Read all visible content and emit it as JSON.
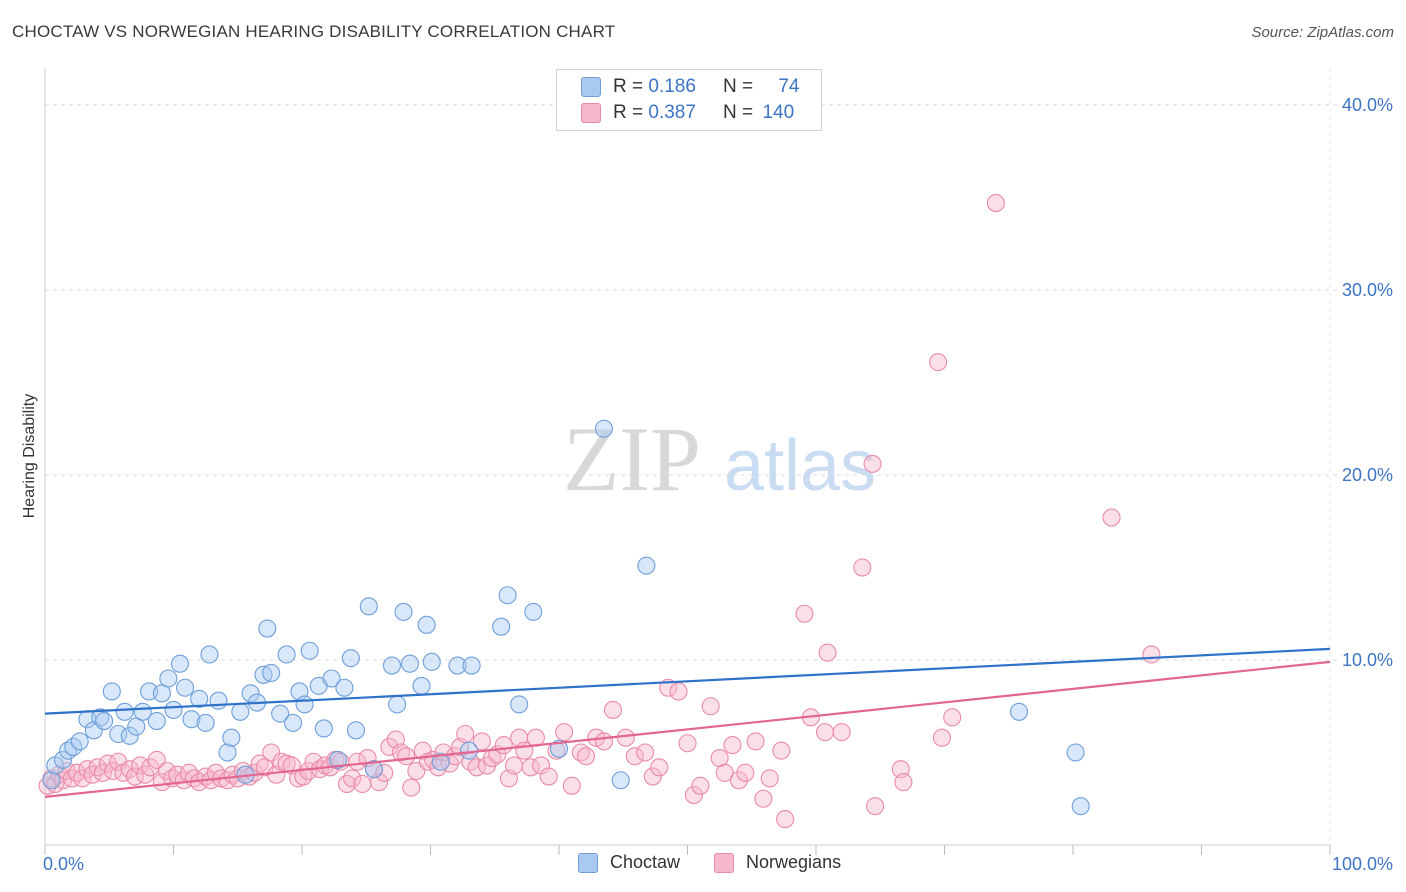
{
  "header": {
    "title": "CHOCTAW VS NORWEGIAN HEARING DISABILITY CORRELATION CHART",
    "source": "Source: ZipAtlas.com"
  },
  "legend": {
    "choctaw": {
      "r_label": "R =",
      "r_value": "0.186",
      "n_label": "N =",
      "n_value": "74"
    },
    "norwegians": {
      "r_label": "R =",
      "r_value": "0.387",
      "n_label": "N =",
      "n_value": "140"
    }
  },
  "watermark": {
    "zip": "ZIP",
    "atlas": "atlas"
  },
  "colors": {
    "choctaw_fill": "#a9c9f1",
    "choctaw_stroke": "#6e9fd8",
    "choctaw_line": "#2f72c9",
    "norwegian_fill": "#f6b8cb",
    "norwegian_stroke": "#e98aa8",
    "norwegian_line": "#e2668f",
    "tick_text": "#3d74c4"
  },
  "chart_data": {
    "type": "scatter",
    "title": "CHOCTAW VS NORWEGIAN HEARING DISABILITY CORRELATION CHART",
    "xlabel": "",
    "ylabel": "Hearing Disability",
    "xlim": [
      0,
      100
    ],
    "ylim": [
      0,
      42
    ],
    "x_tick_labels": [
      "0.0%",
      "100.0%"
    ],
    "y_ticks": [
      10,
      20,
      30,
      40
    ],
    "y_tick_labels": [
      "10.0%",
      "20.0%",
      "30.0%",
      "40.0%"
    ],
    "grid": true,
    "legend_position": "top-center",
    "series": [
      {
        "name": "Choctaw",
        "trend": {
          "x": [
            0,
            100
          ],
          "y": [
            7.1,
            10.6
          ]
        },
        "points": [
          [
            0.5,
            3.5
          ],
          [
            0.8,
            4.3
          ],
          [
            1.4,
            4.6
          ],
          [
            1.8,
            5.1
          ],
          [
            2.2,
            5.3
          ],
          [
            2.7,
            5.6
          ],
          [
            3.3,
            6.8
          ],
          [
            3.8,
            6.2
          ],
          [
            4.3,
            6.9
          ],
          [
            4.6,
            6.7
          ],
          [
            5.2,
            8.3
          ],
          [
            5.7,
            6.0
          ],
          [
            6.2,
            7.2
          ],
          [
            6.6,
            5.9
          ],
          [
            7.1,
            6.4
          ],
          [
            7.6,
            7.2
          ],
          [
            8.1,
            8.3
          ],
          [
            8.7,
            6.7
          ],
          [
            9.1,
            8.2
          ],
          [
            9.6,
            9.0
          ],
          [
            10.0,
            7.3
          ],
          [
            10.5,
            9.8
          ],
          [
            10.9,
            8.5
          ],
          [
            11.4,
            6.8
          ],
          [
            12.0,
            7.9
          ],
          [
            12.5,
            6.6
          ],
          [
            12.8,
            10.3
          ],
          [
            13.5,
            7.8
          ],
          [
            14.2,
            5.0
          ],
          [
            14.5,
            5.8
          ],
          [
            15.2,
            7.2
          ],
          [
            15.6,
            3.8
          ],
          [
            16.0,
            8.2
          ],
          [
            16.5,
            7.7
          ],
          [
            17.0,
            9.2
          ],
          [
            17.3,
            11.7
          ],
          [
            17.6,
            9.3
          ],
          [
            18.3,
            7.1
          ],
          [
            18.8,
            10.3
          ],
          [
            19.3,
            6.6
          ],
          [
            19.8,
            8.3
          ],
          [
            20.2,
            7.6
          ],
          [
            20.6,
            10.5
          ],
          [
            21.3,
            8.6
          ],
          [
            21.7,
            6.3
          ],
          [
            22.3,
            9.0
          ],
          [
            22.8,
            4.6
          ],
          [
            23.3,
            8.5
          ],
          [
            23.8,
            10.1
          ],
          [
            24.2,
            6.2
          ],
          [
            25.2,
            12.9
          ],
          [
            25.6,
            4.1
          ],
          [
            27.0,
            9.7
          ],
          [
            27.4,
            7.6
          ],
          [
            27.9,
            12.6
          ],
          [
            28.4,
            9.8
          ],
          [
            29.3,
            8.6
          ],
          [
            29.7,
            11.9
          ],
          [
            30.1,
            9.9
          ],
          [
            30.8,
            4.5
          ],
          [
            32.1,
            9.7
          ],
          [
            33.0,
            5.1
          ],
          [
            33.2,
            9.7
          ],
          [
            35.5,
            11.8
          ],
          [
            36.0,
            13.5
          ],
          [
            36.9,
            7.6
          ],
          [
            38.0,
            12.6
          ],
          [
            40.0,
            5.2
          ],
          [
            43.5,
            22.5
          ],
          [
            44.8,
            3.5
          ],
          [
            46.8,
            15.1
          ],
          [
            75.8,
            7.2
          ],
          [
            80.2,
            5.0
          ],
          [
            80.6,
            2.1
          ]
        ]
      },
      {
        "name": "Norwegians",
        "trend": {
          "x": [
            0,
            100
          ],
          "y": [
            2.6,
            9.9
          ]
        },
        "points": [
          [
            0.2,
            3.2
          ],
          [
            0.5,
            3.6
          ],
          [
            0.8,
            3.3
          ],
          [
            1.1,
            3.8
          ],
          [
            1.4,
            3.5
          ],
          [
            1.7,
            4.0
          ],
          [
            2.1,
            3.6
          ],
          [
            2.5,
            3.9
          ],
          [
            2.9,
            3.6
          ],
          [
            3.3,
            4.1
          ],
          [
            3.7,
            3.8
          ],
          [
            4.1,
            4.2
          ],
          [
            4.5,
            3.9
          ],
          [
            4.9,
            4.4
          ],
          [
            5.3,
            4.0
          ],
          [
            5.7,
            4.5
          ],
          [
            6.1,
            3.9
          ],
          [
            6.6,
            4.1
          ],
          [
            7.0,
            3.7
          ],
          [
            7.4,
            4.3
          ],
          [
            7.8,
            3.8
          ],
          [
            8.2,
            4.2
          ],
          [
            8.7,
            4.6
          ],
          [
            9.1,
            3.4
          ],
          [
            9.5,
            4.0
          ],
          [
            9.9,
            3.6
          ],
          [
            10.3,
            3.8
          ],
          [
            10.8,
            3.5
          ],
          [
            11.2,
            3.9
          ],
          [
            11.6,
            3.6
          ],
          [
            12.0,
            3.4
          ],
          [
            12.5,
            3.7
          ],
          [
            12.9,
            3.5
          ],
          [
            13.3,
            3.9
          ],
          [
            13.7,
            3.6
          ],
          [
            14.2,
            3.5
          ],
          [
            14.6,
            3.8
          ],
          [
            15.0,
            3.6
          ],
          [
            15.4,
            4.0
          ],
          [
            15.9,
            3.7
          ],
          [
            16.3,
            3.9
          ],
          [
            16.7,
            4.4
          ],
          [
            17.1,
            4.2
          ],
          [
            17.6,
            5.0
          ],
          [
            18.0,
            3.8
          ],
          [
            18.4,
            4.5
          ],
          [
            18.8,
            4.4
          ],
          [
            19.2,
            4.3
          ],
          [
            19.7,
            3.6
          ],
          [
            20.1,
            3.7
          ],
          [
            20.5,
            4.0
          ],
          [
            20.9,
            4.5
          ],
          [
            21.4,
            4.1
          ],
          [
            21.8,
            4.3
          ],
          [
            22.2,
            4.2
          ],
          [
            22.6,
            4.6
          ],
          [
            23.0,
            4.5
          ],
          [
            23.5,
            3.3
          ],
          [
            23.9,
            3.6
          ],
          [
            24.3,
            4.5
          ],
          [
            24.7,
            3.3
          ],
          [
            25.1,
            4.7
          ],
          [
            25.6,
            4.1
          ],
          [
            26.0,
            3.4
          ],
          [
            26.4,
            3.9
          ],
          [
            26.8,
            5.3
          ],
          [
            27.3,
            5.7
          ],
          [
            27.7,
            5.0
          ],
          [
            28.1,
            4.8
          ],
          [
            28.5,
            3.1
          ],
          [
            28.9,
            4.0
          ],
          [
            29.4,
            5.1
          ],
          [
            29.8,
            4.5
          ],
          [
            30.2,
            4.6
          ],
          [
            30.6,
            4.2
          ],
          [
            31.0,
            5.0
          ],
          [
            31.5,
            4.4
          ],
          [
            31.9,
            4.8
          ],
          [
            32.3,
            5.3
          ],
          [
            32.7,
            6.0
          ],
          [
            33.1,
            4.5
          ],
          [
            33.6,
            4.2
          ],
          [
            34.0,
            5.6
          ],
          [
            34.4,
            4.3
          ],
          [
            34.8,
            4.7
          ],
          [
            35.2,
            4.9
          ],
          [
            35.7,
            5.4
          ],
          [
            36.1,
            3.6
          ],
          [
            36.5,
            4.3
          ],
          [
            36.9,
            5.8
          ],
          [
            37.3,
            5.1
          ],
          [
            37.8,
            4.2
          ],
          [
            38.2,
            5.8
          ],
          [
            38.6,
            4.3
          ],
          [
            39.2,
            3.7
          ],
          [
            39.8,
            5.1
          ],
          [
            40.4,
            6.1
          ],
          [
            41.0,
            3.2
          ],
          [
            41.7,
            5.0
          ],
          [
            42.1,
            4.8
          ],
          [
            42.9,
            5.8
          ],
          [
            43.5,
            5.6
          ],
          [
            44.2,
            7.3
          ],
          [
            45.2,
            5.8
          ],
          [
            45.9,
            4.8
          ],
          [
            46.7,
            5.0
          ],
          [
            47.3,
            3.7
          ],
          [
            47.8,
            4.2
          ],
          [
            48.5,
            8.5
          ],
          [
            49.3,
            8.3
          ],
          [
            50.0,
            5.5
          ],
          [
            50.5,
            2.7
          ],
          [
            51.0,
            3.2
          ],
          [
            51.8,
            7.5
          ],
          [
            52.5,
            4.7
          ],
          [
            52.9,
            3.9
          ],
          [
            53.5,
            5.4
          ],
          [
            54.0,
            3.5
          ],
          [
            54.5,
            3.9
          ],
          [
            55.3,
            5.6
          ],
          [
            55.9,
            2.5
          ],
          [
            56.4,
            3.6
          ],
          [
            57.3,
            5.1
          ],
          [
            57.6,
            1.4
          ],
          [
            59.1,
            12.5
          ],
          [
            59.6,
            6.9
          ],
          [
            60.7,
            6.1
          ],
          [
            60.9,
            10.4
          ],
          [
            62.0,
            6.1
          ],
          [
            63.6,
            15.0
          ],
          [
            64.4,
            20.6
          ],
          [
            64.6,
            2.1
          ],
          [
            66.6,
            4.1
          ],
          [
            66.8,
            3.4
          ],
          [
            69.5,
            26.1
          ],
          [
            69.8,
            5.8
          ],
          [
            70.6,
            6.9
          ],
          [
            74.0,
            34.7
          ],
          [
            83.0,
            17.7
          ],
          [
            86.1,
            10.3
          ]
        ]
      }
    ]
  }
}
